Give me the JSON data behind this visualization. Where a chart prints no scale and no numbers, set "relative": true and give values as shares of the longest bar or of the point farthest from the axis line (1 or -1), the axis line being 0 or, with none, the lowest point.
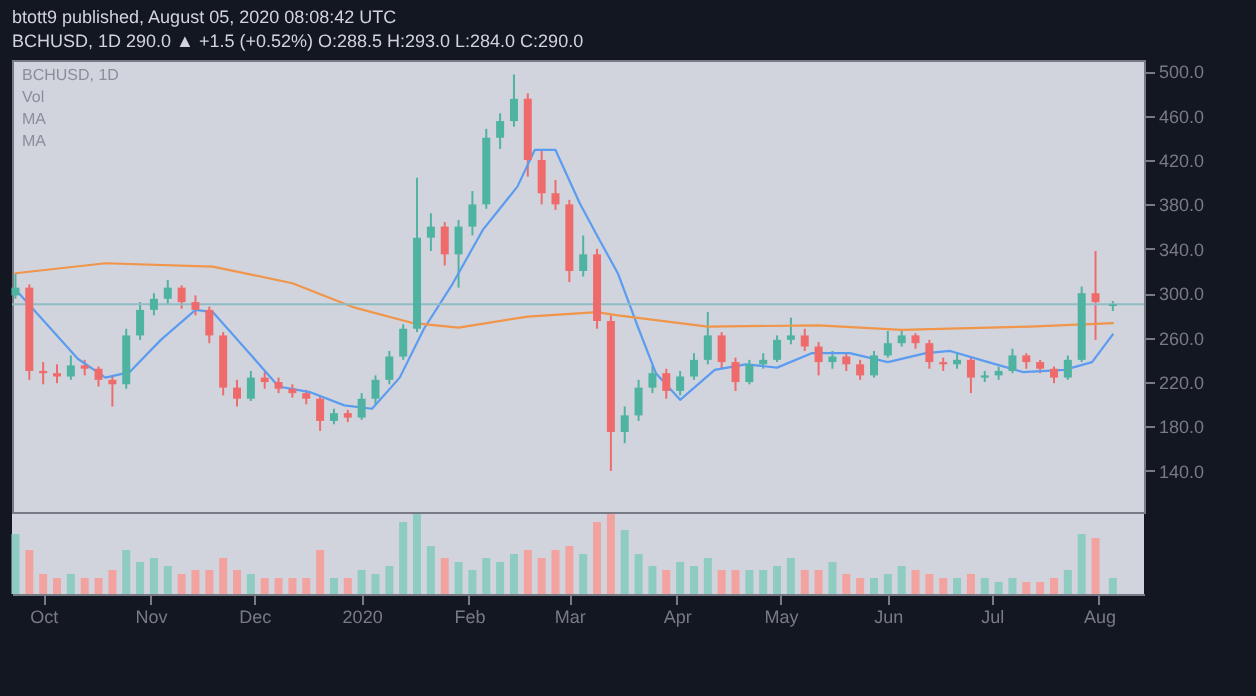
{
  "chart_data": [
    {
      "type": "candlestick",
      "title": "btott9 published, August 05, 2020 08:08:42 UTC",
      "subtitle": "BCHUSD, 1D 290.0 ▲ +1.5 (+0.52%) O:288.5 H:293.0 L:284.0 C:290.0",
      "annotations": [
        "BCHUSD, 1D",
        "Vol",
        "MA",
        "MA"
      ],
      "x": [
        "2019-09-23",
        "2019-09-27",
        "2019-10-01",
        "2019-10-05",
        "2019-10-09",
        "2019-10-13",
        "2019-10-17",
        "2019-10-21",
        "2019-10-25",
        "2019-10-29",
        "2019-11-02",
        "2019-11-06",
        "2019-11-10",
        "2019-11-14",
        "2019-11-18",
        "2019-11-22",
        "2019-11-26",
        "2019-11-30",
        "2019-12-04",
        "2019-12-08",
        "2019-12-12",
        "2019-12-16",
        "2019-12-20",
        "2019-12-24",
        "2019-12-28",
        "2020-01-01",
        "2020-01-05",
        "2020-01-09",
        "2020-01-13",
        "2020-01-17",
        "2020-01-21",
        "2020-01-25",
        "2020-01-29",
        "2020-02-02",
        "2020-02-06",
        "2020-02-10",
        "2020-02-14",
        "2020-02-18",
        "2020-02-22",
        "2020-02-26",
        "2020-03-01",
        "2020-03-05",
        "2020-03-09",
        "2020-03-13",
        "2020-03-17",
        "2020-03-21",
        "2020-03-25",
        "2020-03-29",
        "2020-04-02",
        "2020-04-06",
        "2020-04-10",
        "2020-04-14",
        "2020-04-18",
        "2020-04-22",
        "2020-04-26",
        "2020-04-30",
        "2020-05-04",
        "2020-05-08",
        "2020-05-12",
        "2020-05-16",
        "2020-05-20",
        "2020-05-24",
        "2020-05-28",
        "2020-06-01",
        "2020-06-05",
        "2020-06-09",
        "2020-06-13",
        "2020-06-17",
        "2020-06-21",
        "2020-06-25",
        "2020-06-29",
        "2020-07-03",
        "2020-07-07",
        "2020-07-11",
        "2020-07-15",
        "2020-07-19",
        "2020-07-23",
        "2020-07-27",
        "2020-07-31",
        "2020-08-05"
      ],
      "ohlc": [
        [
          298,
          318,
          295,
          305
        ],
        [
          305,
          308,
          222,
          230
        ],
        [
          230,
          238,
          218,
          228
        ],
        [
          228,
          236,
          219,
          225
        ],
        [
          225,
          244,
          222,
          235
        ],
        [
          235,
          240,
          226,
          232
        ],
        [
          232,
          234,
          216,
          222
        ],
        [
          222,
          226,
          198,
          218
        ],
        [
          218,
          268,
          214,
          262
        ],
        [
          262,
          292,
          258,
          285
        ],
        [
          285,
          300,
          280,
          295
        ],
        [
          295,
          312,
          290,
          305
        ],
        [
          305,
          307,
          286,
          292
        ],
        [
          292,
          298,
          280,
          285
        ],
        [
          285,
          288,
          255,
          262
        ],
        [
          262,
          265,
          208,
          215
        ],
        [
          215,
          222,
          198,
          205
        ],
        [
          205,
          230,
          203,
          224
        ],
        [
          224,
          229,
          214,
          220
        ],
        [
          220,
          224,
          210,
          214
        ],
        [
          214,
          218,
          206,
          210
        ],
        [
          210,
          213,
          200,
          205
        ],
        [
          205,
          207,
          176,
          185
        ],
        [
          185,
          196,
          182,
          192
        ],
        [
          192,
          195,
          184,
          188
        ],
        [
          188,
          210,
          186,
          205
        ],
        [
          205,
          226,
          200,
          222
        ],
        [
          222,
          248,
          218,
          243
        ],
        [
          243,
          272,
          240,
          268
        ],
        [
          268,
          404,
          265,
          350
        ],
        [
          350,
          372,
          338,
          360
        ],
        [
          360,
          364,
          325,
          335
        ],
        [
          335,
          366,
          305,
          360
        ],
        [
          360,
          392,
          352,
          380
        ],
        [
          380,
          448,
          376,
          440
        ],
        [
          440,
          462,
          430,
          455
        ],
        [
          455,
          497,
          450,
          475
        ],
        [
          475,
          480,
          405,
          420
        ],
        [
          420,
          428,
          380,
          390
        ],
        [
          390,
          402,
          375,
          380
        ],
        [
          380,
          384,
          310,
          320
        ],
        [
          320,
          352,
          315,
          335
        ],
        [
          335,
          340,
          268,
          275
        ],
        [
          275,
          280,
          140,
          175
        ],
        [
          175,
          198,
          165,
          190
        ],
        [
          190,
          222,
          185,
          215
        ],
        [
          215,
          235,
          210,
          228
        ],
        [
          228,
          232,
          205,
          212
        ],
        [
          212,
          230,
          208,
          225
        ],
        [
          225,
          246,
          222,
          240
        ],
        [
          240,
          283,
          236,
          262
        ],
        [
          262,
          265,
          232,
          238
        ],
        [
          238,
          242,
          212,
          220
        ],
        [
          220,
          240,
          218,
          236
        ],
        [
          236,
          246,
          232,
          240
        ],
        [
          240,
          262,
          238,
          258
        ],
        [
          258,
          278,
          254,
          262
        ],
        [
          262,
          268,
          248,
          252
        ],
        [
          252,
          256,
          226,
          238
        ],
        [
          238,
          248,
          232,
          243
        ],
        [
          243,
          246,
          230,
          236
        ],
        [
          236,
          240,
          222,
          226
        ],
        [
          226,
          248,
          224,
          244
        ],
        [
          244,
          266,
          242,
          255
        ],
        [
          255,
          266,
          252,
          262
        ],
        [
          262,
          264,
          250,
          255
        ],
        [
          255,
          258,
          232,
          238
        ],
        [
          238,
          242,
          230,
          236
        ],
        [
          236,
          246,
          232,
          240
        ],
        [
          240,
          242,
          210,
          224
        ],
        [
          224,
          230,
          220,
          226
        ],
        [
          226,
          234,
          222,
          230
        ],
        [
          230,
          250,
          228,
          244
        ],
        [
          244,
          246,
          232,
          238
        ],
        [
          238,
          240,
          228,
          232
        ],
        [
          232,
          234,
          219,
          224
        ],
        [
          224,
          244,
          222,
          240
        ],
        [
          240,
          306,
          238,
          300
        ],
        [
          300,
          338,
          258,
          292
        ],
        [
          288.5,
          293,
          284,
          290
        ]
      ],
      "colors": [
        "#4fb3a1",
        "#ef6b6b",
        "#ef6b6b",
        "#ef6b6b",
        "#4fb3a1",
        "#ef6b6b",
        "#ef6b6b",
        "#ef6b6b",
        "#4fb3a1",
        "#4fb3a1",
        "#4fb3a1",
        "#4fb3a1",
        "#ef6b6b",
        "#ef6b6b",
        "#ef6b6b",
        "#ef6b6b",
        "#ef6b6b",
        "#4fb3a1",
        "#ef6b6b",
        "#ef6b6b",
        "#ef6b6b",
        "#ef6b6b",
        "#ef6b6b",
        "#4fb3a1",
        "#ef6b6b",
        "#4fb3a1",
        "#4fb3a1",
        "#4fb3a1",
        "#4fb3a1",
        "#4fb3a1",
        "#4fb3a1",
        "#ef6b6b",
        "#4fb3a1",
        "#4fb3a1",
        "#4fb3a1",
        "#4fb3a1",
        "#4fb3a1",
        "#ef6b6b",
        "#ef6b6b",
        "#ef6b6b",
        "#ef6b6b",
        "#4fb3a1",
        "#ef6b6b",
        "#ef6b6b",
        "#4fb3a1",
        "#4fb3a1",
        "#4fb3a1",
        "#ef6b6b",
        "#4fb3a1",
        "#4fb3a1",
        "#4fb3a1",
        "#ef6b6b",
        "#ef6b6b",
        "#4fb3a1",
        "#4fb3a1",
        "#4fb3a1",
        "#4fb3a1",
        "#ef6b6b",
        "#ef6b6b",
        "#4fb3a1",
        "#ef6b6b",
        "#ef6b6b",
        "#4fb3a1",
        "#4fb3a1",
        "#4fb3a1",
        "#ef6b6b",
        "#ef6b6b",
        "#ef6b6b",
        "#4fb3a1",
        "#ef6b6b",
        "#4fb3a1",
        "#4fb3a1",
        "#4fb3a1",
        "#ef6b6b",
        "#ef6b6b",
        "#ef6b6b",
        "#4fb3a1",
        "#4fb3a1",
        "#ef6b6b",
        "#4fb3a1"
      ],
      "series": [
        {
          "type": "line",
          "color": "#5b9cf0",
          "x": [
            "2019-09-24",
            "2019-10-11",
            "2019-10-19",
            "2019-10-26",
            "2019-11-04",
            "2019-11-14",
            "2019-11-19",
            "2019-11-29",
            "2019-12-08",
            "2019-12-17",
            "2019-12-27",
            "2020-01-04",
            "2020-01-12",
            "2020-01-19",
            "2020-01-27",
            "2020-02-05",
            "2020-02-15",
            "2020-02-20",
            "2020-02-26",
            "2020-03-04",
            "2020-03-09",
            "2020-03-15",
            "2020-03-21",
            "2020-03-26",
            "2020-04-02",
            "2020-04-12",
            "2020-04-21",
            "2020-04-30",
            "2020-05-10",
            "2020-05-21",
            "2020-06-01",
            "2020-06-12",
            "2020-06-19",
            "2020-06-30",
            "2020-07-10",
            "2020-07-22",
            "2020-07-30",
            "2020-08-05"
          ],
          "values": [
            300,
            241,
            224,
            229,
            258,
            285,
            283,
            248,
            216,
            211,
            199,
            196,
            224,
            268,
            307,
            357,
            396,
            429,
            429,
            381,
            352,
            318,
            268,
            228,
            204,
            231,
            236,
            233,
            246,
            246,
            238,
            246,
            248,
            238,
            229,
            231,
            238,
            263
          ]
        },
        {
          "type": "line",
          "color": "#f0954a",
          "x": [
            "2019-09-23",
            "2019-10-19",
            "2019-11-19",
            "2019-12-12",
            "2019-12-30",
            "2020-01-16",
            "2020-01-29",
            "2020-02-18",
            "2020-03-09",
            "2020-03-15",
            "2020-04-10",
            "2020-05-12",
            "2020-06-05",
            "2020-07-12",
            "2020-08-05"
          ],
          "values": [
            318,
            327,
            324,
            309,
            287,
            273,
            269,
            279,
            283,
            280,
            270,
            271,
            267,
            270,
            273
          ]
        }
      ],
      "ref_lines": [
        {
          "axis": "y",
          "value": 290,
          "color": "#8fbcc4"
        }
      ],
      "xlim": [
        "2019-09-22",
        "2020-08-14"
      ],
      "ylim": [
        103,
        510
      ],
      "yticks": [
        {
          "value": 140,
          "label": "140.0"
        },
        {
          "value": 180,
          "label": "180.0"
        },
        {
          "value": 220,
          "label": "220.0"
        },
        {
          "value": 260,
          "label": "260.0"
        },
        {
          "value": 300,
          "label": "300.0"
        },
        {
          "value": 340,
          "label": "340.0"
        },
        {
          "value": 380,
          "label": "380.0"
        },
        {
          "value": 420,
          "label": "420.0"
        },
        {
          "value": 460,
          "label": "460.0"
        },
        {
          "value": 500,
          "label": "500.0"
        }
      ],
      "tick_labels": "y"
    },
    {
      "type": "bar",
      "relative": true,
      "x": [
        "2019-09-23",
        "2019-09-27",
        "2019-10-01",
        "2019-10-05",
        "2019-10-09",
        "2019-10-13",
        "2019-10-17",
        "2019-10-21",
        "2019-10-25",
        "2019-10-29",
        "2019-11-02",
        "2019-11-06",
        "2019-11-10",
        "2019-11-14",
        "2019-11-18",
        "2019-11-22",
        "2019-11-26",
        "2019-11-30",
        "2019-12-04",
        "2019-12-08",
        "2019-12-12",
        "2019-12-16",
        "2019-12-20",
        "2019-12-24",
        "2019-12-28",
        "2020-01-01",
        "2020-01-05",
        "2020-01-09",
        "2020-01-13",
        "2020-01-17",
        "2020-01-21",
        "2020-01-25",
        "2020-01-29",
        "2020-02-02",
        "2020-02-06",
        "2020-02-10",
        "2020-02-14",
        "2020-02-18",
        "2020-02-22",
        "2020-02-26",
        "2020-03-01",
        "2020-03-05",
        "2020-03-09",
        "2020-03-13",
        "2020-03-17",
        "2020-03-21",
        "2020-03-25",
        "2020-03-29",
        "2020-04-02",
        "2020-04-06",
        "2020-04-10",
        "2020-04-14",
        "2020-04-18",
        "2020-04-22",
        "2020-04-26",
        "2020-04-30",
        "2020-05-04",
        "2020-05-08",
        "2020-05-12",
        "2020-05-16",
        "2020-05-20",
        "2020-05-24",
        "2020-05-28",
        "2020-06-01",
        "2020-06-05",
        "2020-06-09",
        "2020-06-13",
        "2020-06-17",
        "2020-06-21",
        "2020-06-25",
        "2020-06-29",
        "2020-07-03",
        "2020-07-07",
        "2020-07-11",
        "2020-07-15",
        "2020-07-19",
        "2020-07-23",
        "2020-07-27",
        "2020-07-31",
        "2020-08-05"
      ],
      "values": [
        0.75,
        0.55,
        0.25,
        0.2,
        0.25,
        0.2,
        0.2,
        0.3,
        0.55,
        0.4,
        0.45,
        0.35,
        0.25,
        0.3,
        0.3,
        0.45,
        0.3,
        0.25,
        0.2,
        0.2,
        0.2,
        0.2,
        0.55,
        0.2,
        0.2,
        0.3,
        0.25,
        0.35,
        0.9,
        1.0,
        0.6,
        0.45,
        0.4,
        0.3,
        0.45,
        0.4,
        0.5,
        0.55,
        0.45,
        0.55,
        0.6,
        0.5,
        0.9,
        1.0,
        0.8,
        0.5,
        0.35,
        0.3,
        0.4,
        0.35,
        0.45,
        0.3,
        0.3,
        0.3,
        0.3,
        0.35,
        0.45,
        0.3,
        0.3,
        0.4,
        0.25,
        0.2,
        0.2,
        0.25,
        0.35,
        0.3,
        0.25,
        0.2,
        0.2,
        0.25,
        0.2,
        0.15,
        0.2,
        0.15,
        0.15,
        0.2,
        0.3,
        0.75,
        0.7,
        0.2
      ],
      "colors": [
        "#8ecbc0",
        "#f2a3a0",
        "#f2a3a0",
        "#f2a3a0",
        "#8ecbc0",
        "#f2a3a0",
        "#f2a3a0",
        "#f2a3a0",
        "#8ecbc0",
        "#8ecbc0",
        "#8ecbc0",
        "#8ecbc0",
        "#f2a3a0",
        "#f2a3a0",
        "#f2a3a0",
        "#f2a3a0",
        "#f2a3a0",
        "#8ecbc0",
        "#f2a3a0",
        "#f2a3a0",
        "#f2a3a0",
        "#f2a3a0",
        "#f2a3a0",
        "#8ecbc0",
        "#f2a3a0",
        "#8ecbc0",
        "#8ecbc0",
        "#8ecbc0",
        "#8ecbc0",
        "#8ecbc0",
        "#8ecbc0",
        "#f2a3a0",
        "#8ecbc0",
        "#8ecbc0",
        "#8ecbc0",
        "#8ecbc0",
        "#8ecbc0",
        "#f2a3a0",
        "#f2a3a0",
        "#f2a3a0",
        "#f2a3a0",
        "#8ecbc0",
        "#f2a3a0",
        "#f2a3a0",
        "#8ecbc0",
        "#8ecbc0",
        "#8ecbc0",
        "#f2a3a0",
        "#8ecbc0",
        "#8ecbc0",
        "#8ecbc0",
        "#f2a3a0",
        "#f2a3a0",
        "#8ecbc0",
        "#8ecbc0",
        "#8ecbc0",
        "#8ecbc0",
        "#f2a3a0",
        "#f2a3a0",
        "#8ecbc0",
        "#f2a3a0",
        "#f2a3a0",
        "#8ecbc0",
        "#8ecbc0",
        "#8ecbc0",
        "#f2a3a0",
        "#f2a3a0",
        "#f2a3a0",
        "#8ecbc0",
        "#f2a3a0",
        "#8ecbc0",
        "#8ecbc0",
        "#8ecbc0",
        "#f2a3a0",
        "#f2a3a0",
        "#f2a3a0",
        "#8ecbc0",
        "#8ecbc0",
        "#f2a3a0",
        "#8ecbc0"
      ],
      "xlim": [
        "2019-09-22",
        "2020-08-14"
      ],
      "xticks": [
        {
          "value": "2019-10-01",
          "label": "Oct"
        },
        {
          "value": "2019-11-01",
          "label": "Nov"
        },
        {
          "value": "2019-12-01",
          "label": "Dec"
        },
        {
          "value": "2020-01-01",
          "label": "2020"
        },
        {
          "value": "2020-02-01",
          "label": "Feb"
        },
        {
          "value": "2020-03-01",
          "label": "Mar"
        },
        {
          "value": "2020-04-01",
          "label": "Apr"
        },
        {
          "value": "2020-05-01",
          "label": "May"
        },
        {
          "value": "2020-06-01",
          "label": "Jun"
        },
        {
          "value": "2020-07-01",
          "label": "Jul"
        },
        {
          "value": "2020-08-01",
          "label": "Aug"
        }
      ],
      "tick_labels": "x"
    }
  ]
}
